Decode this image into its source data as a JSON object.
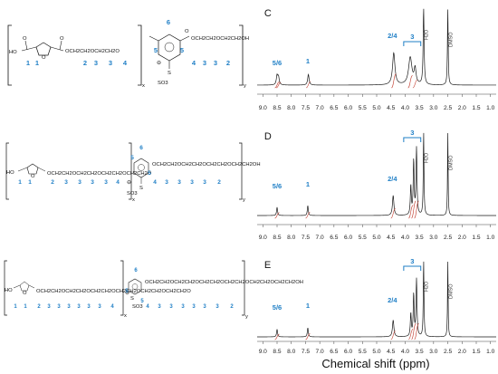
{
  "figure": {
    "x_axis_title": "Chemical shift (ppm)",
    "colors": {
      "label_blue": "#1f7fc6",
      "trace_black": "#1a1a1a",
      "integral_red": "#c0392b"
    },
    "axis_ticks": [
      "9.0",
      "8.5",
      "8.0",
      "7.5",
      "7.0",
      "6.5",
      "6.0",
      "5.5",
      "5.0",
      "4.5",
      "4.0",
      "3.5",
      "3.0",
      "2.5",
      "2.0",
      "1.5",
      "1.0"
    ],
    "solvents": {
      "water": "H2O",
      "dmso": "DMSO"
    }
  },
  "structures": [
    {
      "row": "top",
      "left_text": "HO",
      "chain1": "OCH2CH2OCH2CH2O",
      "chain2": "OCH2CH2OCH2CH2OH",
      "sub_x": "x",
      "sub_y": "y",
      "sulfonate": "SO3",
      "sulfonate_S": "S",
      "charge": "⊖",
      "furan_labels": [
        "1",
        "1"
      ],
      "chain1_labels": [
        "2",
        "3",
        "3",
        "4"
      ],
      "ring_labels": [
        "5",
        "6",
        "5"
      ],
      "chain2_labels": [
        "4",
        "3",
        "3",
        "2"
      ]
    },
    {
      "row": "middle",
      "left_text": "HO",
      "chain1": "OCH2CH2OCH2CH2OCH2CH2OCH2CH2O",
      "chain2": "OCH2CH2OCH2CH2OCH2CH2OCH2CH2OH",
      "sub_x": "x",
      "sub_y": "y",
      "sulfonate": "SO3",
      "sulfonate_S": "S",
      "charge": "⊖",
      "furan_labels": [
        "1",
        "1"
      ],
      "chain1_labels": [
        "2",
        "3",
        "3",
        "3",
        "3",
        "4"
      ],
      "ring_labels": [
        "5",
        "6",
        "5"
      ],
      "chain2_labels": [
        "4",
        "3",
        "3",
        "3",
        "3",
        "2"
      ]
    },
    {
      "row": "bottom",
      "left_text": "HO",
      "chain1": "OCH2CH2OCH2CH2OCH2CH2OCH2CH2OCH2CH2OCH2CH2O",
      "chain2": "OCH2CH2OCH2CH2OCH2CH2OCH2CH2OCH2CH2OCH2CH2OH",
      "sub_x": "x",
      "sub_y": "y",
      "sulfonate": "SO3",
      "sulfonate_S": "S",
      "charge": "⊖",
      "furan_labels": [
        "1",
        "1"
      ],
      "chain1_labels": [
        "2",
        "3",
        "3",
        "3",
        "3",
        "3",
        "3",
        "4"
      ],
      "ring_labels": [
        "5",
        "6",
        "5"
      ],
      "chain2_labels": [
        "4",
        "3",
        "3",
        "3",
        "3",
        "3",
        "3",
        "2"
      ]
    }
  ],
  "spectra": [
    {
      "panel": "C",
      "peak_labels": {
        "aromatic": "5/6",
        "furan": "1",
        "ester": "2/4",
        "ether": "3"
      },
      "peaks_ppm": [
        {
          "ppm": 8.5,
          "rel": 0.12,
          "width": 0.03
        },
        {
          "ppm": 8.45,
          "rel": 0.1,
          "width": 0.03
        },
        {
          "ppm": 7.4,
          "rel": 0.14,
          "width": 0.03
        },
        {
          "ppm": 4.4,
          "rel": 0.42,
          "width": 0.05
        },
        {
          "ppm": 3.82,
          "rel": 0.36,
          "width": 0.07
        },
        {
          "ppm": 3.65,
          "rel": 0.2,
          "width": 0.04
        },
        {
          "ppm": 3.35,
          "rel": 1.0,
          "width": 0.02
        },
        {
          "ppm": 2.5,
          "rel": 1.0,
          "width": 0.015
        }
      ]
    },
    {
      "panel": "D",
      "peak_labels": {
        "aromatic": "5/6",
        "furan": "1",
        "ester": "2/4",
        "ether": "3"
      },
      "peaks_ppm": [
        {
          "ppm": 8.5,
          "rel": 0.1,
          "width": 0.02
        },
        {
          "ppm": 7.42,
          "rel": 0.12,
          "width": 0.02
        },
        {
          "ppm": 4.42,
          "rel": 0.24,
          "width": 0.03
        },
        {
          "ppm": 3.8,
          "rel": 0.35,
          "width": 0.02
        },
        {
          "ppm": 3.7,
          "rel": 0.65,
          "width": 0.02
        },
        {
          "ppm": 3.6,
          "rel": 0.8,
          "width": 0.02
        },
        {
          "ppm": 3.35,
          "rel": 1.0,
          "width": 0.015
        },
        {
          "ppm": 2.5,
          "rel": 1.0,
          "width": 0.012
        }
      ]
    },
    {
      "panel": "E",
      "peak_labels": {
        "aromatic": "5/6",
        "furan": "1",
        "ester": "2/4",
        "ether": "3"
      },
      "peaks_ppm": [
        {
          "ppm": 8.5,
          "rel": 0.1,
          "width": 0.02
        },
        {
          "ppm": 7.42,
          "rel": 0.12,
          "width": 0.02
        },
        {
          "ppm": 4.42,
          "rel": 0.22,
          "width": 0.03
        },
        {
          "ppm": 3.8,
          "rel": 0.3,
          "width": 0.02
        },
        {
          "ppm": 3.7,
          "rel": 0.55,
          "width": 0.02
        },
        {
          "ppm": 3.6,
          "rel": 0.75,
          "width": 0.02
        },
        {
          "ppm": 3.35,
          "rel": 1.0,
          "width": 0.015
        },
        {
          "ppm": 2.5,
          "rel": 1.0,
          "width": 0.012
        }
      ]
    }
  ]
}
